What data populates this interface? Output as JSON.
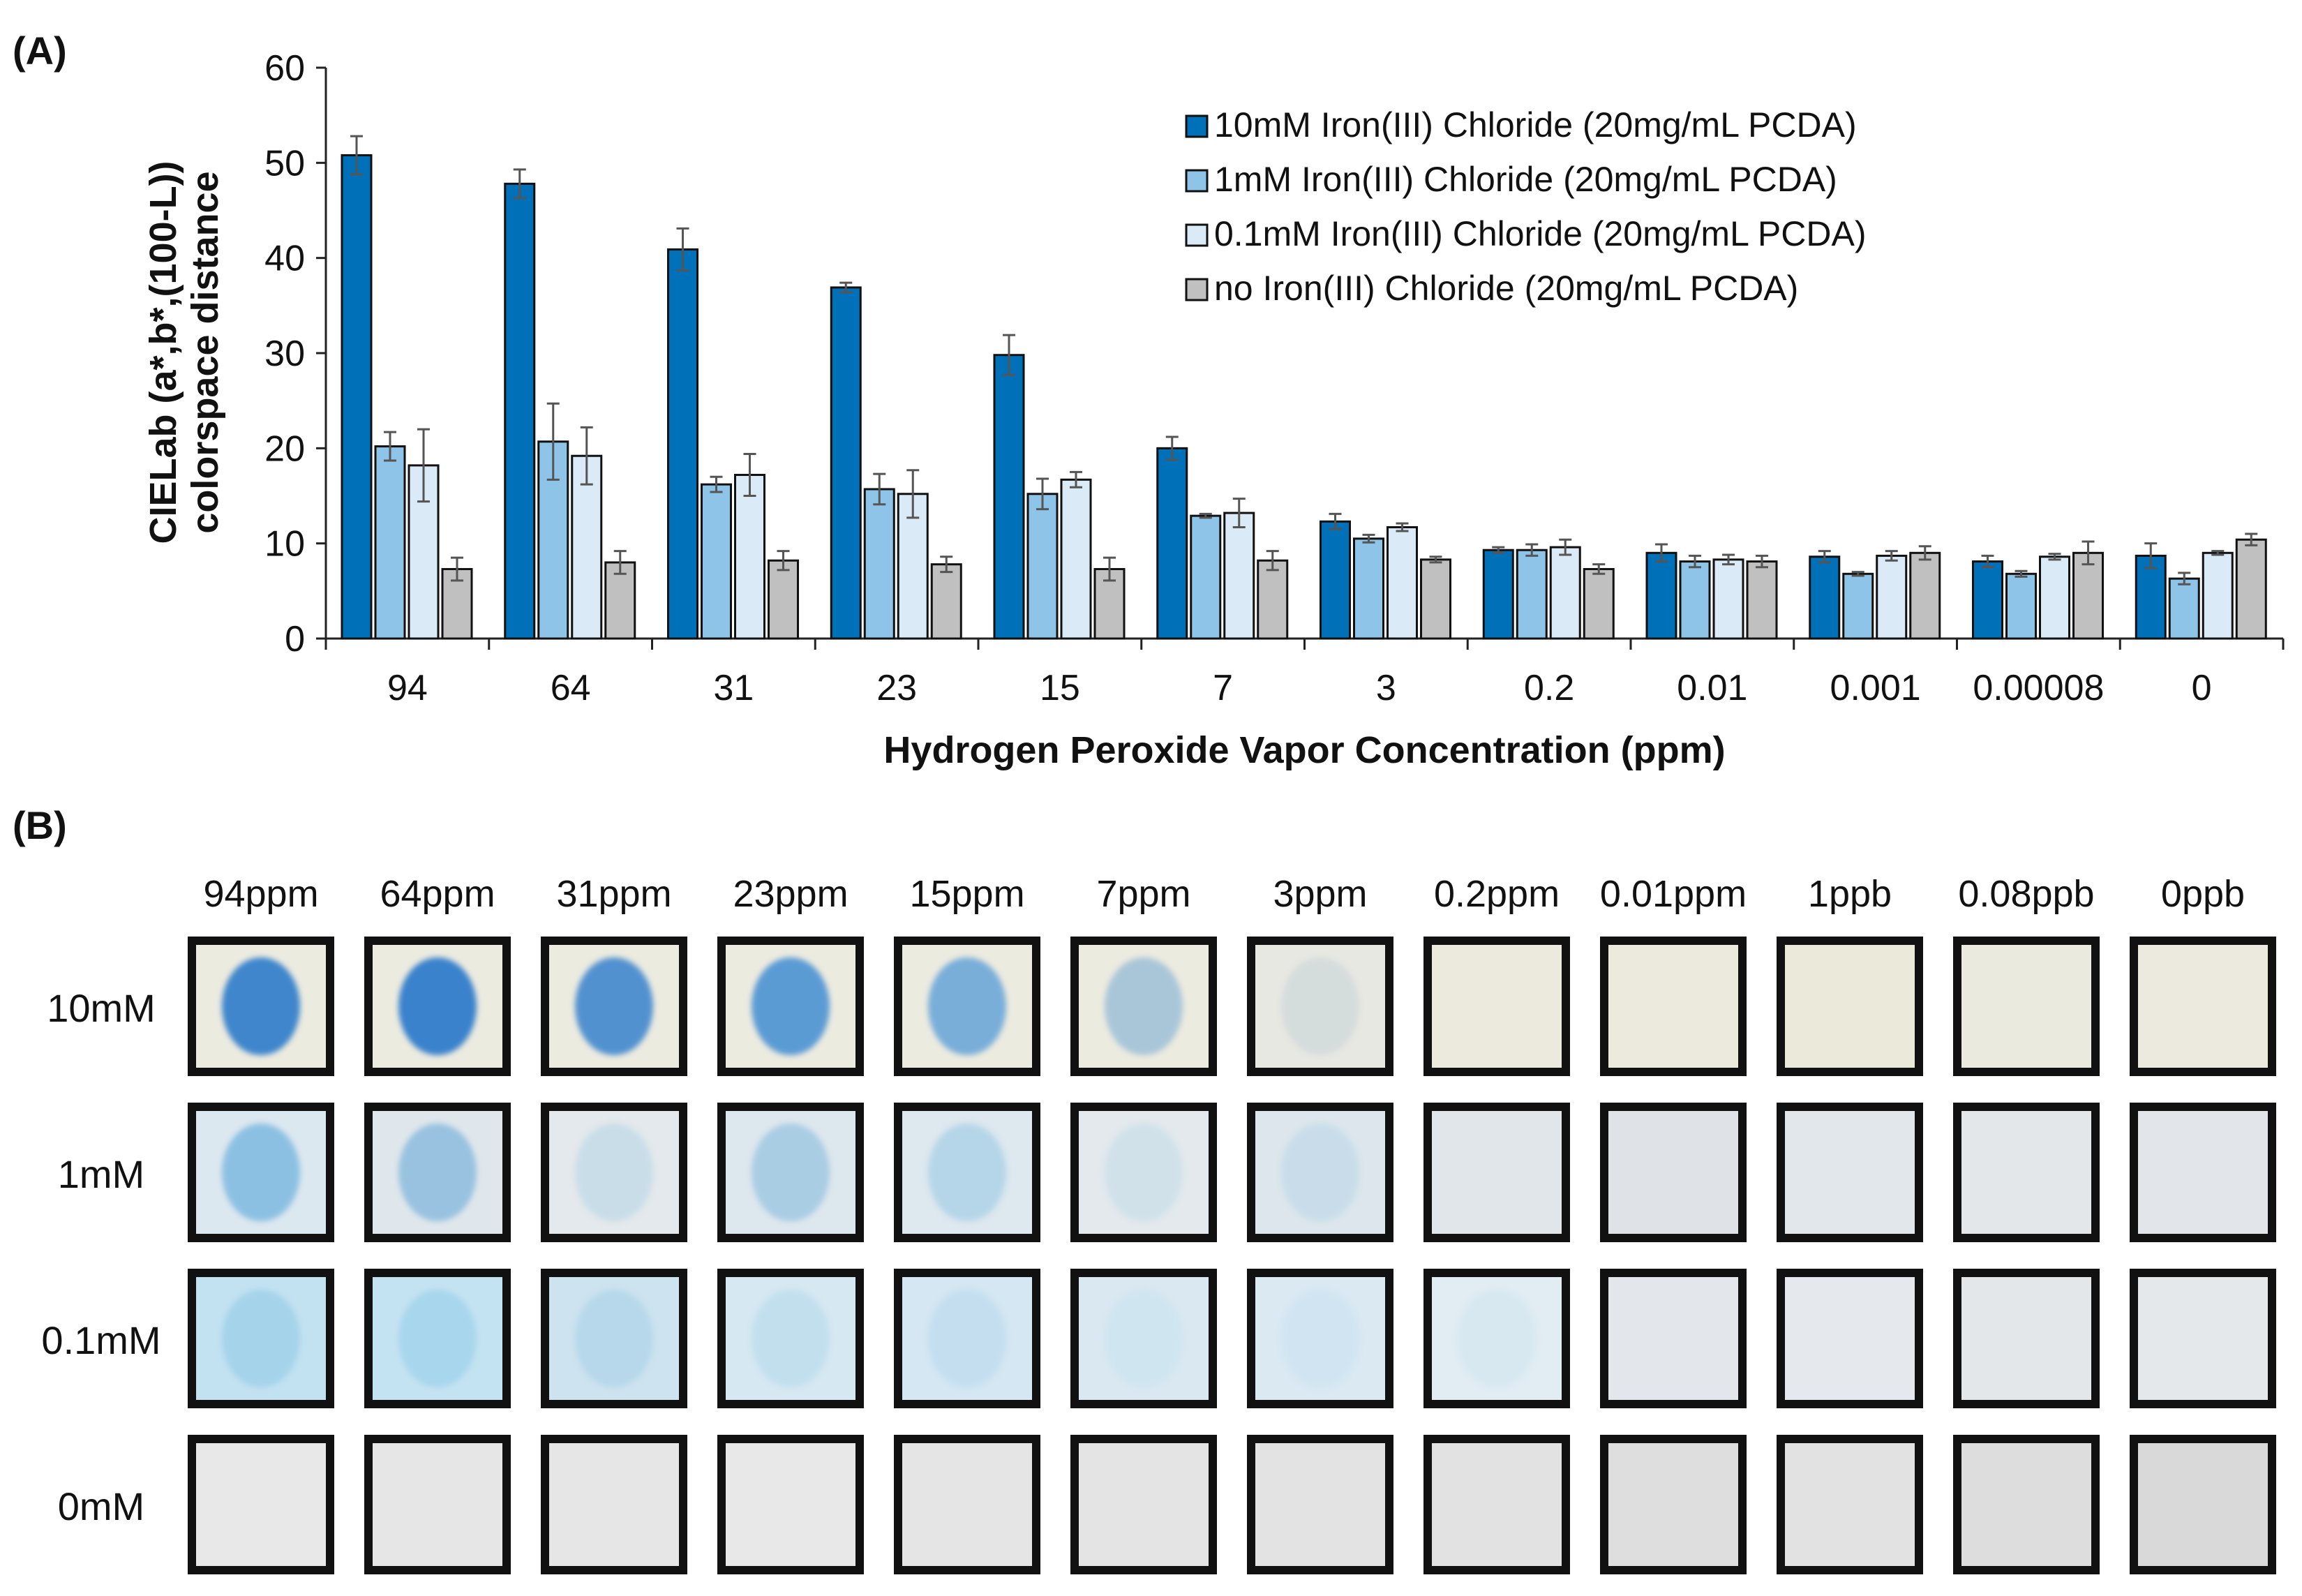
{
  "panels": {
    "a": "(A)",
    "b": "(B)"
  },
  "chart_data": {
    "type": "bar",
    "title": "",
    "xlabel": "Hydrogen Peroxide Vapor Concentration (ppm)",
    "ylabel": [
      "CIELab (a*,b*,(100-L))",
      "colorspace distance"
    ],
    "ylim": [
      0,
      60
    ],
    "yticks": [
      0,
      10,
      20,
      30,
      40,
      50,
      60
    ],
    "legend_position": "top-right",
    "categories": [
      "94",
      "64",
      "31",
      "23",
      "15",
      "7",
      "3",
      "0.2",
      "0.01",
      "0.001",
      "0.00008",
      "0"
    ],
    "series": [
      {
        "name": "10mM Iron(III) Chloride (20mg/mL PCDA)",
        "color": "#0070b8",
        "values": [
          50.8,
          47.8,
          40.9,
          36.9,
          29.8,
          20.0,
          12.3,
          9.3,
          9.0,
          8.6,
          8.1,
          8.7
        ],
        "errors": [
          2.0,
          1.5,
          2.2,
          0.5,
          2.1,
          1.2,
          0.8,
          0.3,
          0.9,
          0.6,
          0.6,
          1.3
        ]
      },
      {
        "name": "1mM Iron(III) Chloride (20mg/mL PCDA)",
        "color": "#8ec4e8",
        "values": [
          20.2,
          20.7,
          16.2,
          15.7,
          15.2,
          12.9,
          10.5,
          9.3,
          8.1,
          6.8,
          6.8,
          6.3
        ],
        "errors": [
          1.5,
          4.0,
          0.8,
          1.6,
          1.6,
          0.2,
          0.4,
          0.6,
          0.6,
          0.2,
          0.3,
          0.6
        ]
      },
      {
        "name": "0.1mM Iron(III) Chloride (20mg/mL PCDA)",
        "color": "#dbeaf7",
        "values": [
          18.2,
          19.2,
          17.2,
          15.2,
          16.7,
          13.2,
          11.7,
          9.6,
          8.3,
          8.7,
          8.6,
          9.0
        ],
        "errors": [
          3.8,
          3.0,
          2.2,
          2.5,
          0.8,
          1.5,
          0.4,
          0.8,
          0.5,
          0.5,
          0.3,
          0.2
        ]
      },
      {
        "name": "no Iron(III) Chloride (20mg/mL PCDA)",
        "color": "#c0c0c0",
        "values": [
          7.3,
          8.0,
          8.2,
          7.8,
          7.3,
          8.2,
          8.3,
          7.3,
          8.1,
          9.0,
          9.0,
          10.4
        ],
        "errors": [
          1.2,
          1.2,
          1.0,
          0.8,
          1.2,
          1.0,
          0.3,
          0.5,
          0.6,
          0.7,
          1.2,
          0.6
        ]
      }
    ]
  },
  "grid": {
    "columns": [
      "94ppm",
      "64ppm",
      "31ppm",
      "23ppm",
      "15ppm",
      "7ppm",
      "3ppm",
      "0.2ppm",
      "0.01ppm",
      "1ppb",
      "0.08ppb",
      "0ppb"
    ],
    "rows": [
      {
        "label": "10mM",
        "bg": "#ebeadf",
        "spots": [
          "#3f86cc",
          "#3a82cc",
          "#5291d0",
          "#5b9bd4",
          "#79aed9",
          "#a9c6d8",
          "#d5dcdc",
          null,
          null,
          null,
          null,
          null
        ]
      },
      {
        "label": "1mM",
        "bg": "#dfe6ea",
        "spots": [
          "#8cc0e2",
          "#98c2df",
          "#c9dde9",
          "#a9cde3",
          "#b5d6e8",
          "#d0e1ea",
          "#c8dde9",
          null,
          null,
          null,
          null,
          null
        ]
      },
      {
        "label": "0.1mM",
        "bg": "#c8e2ef",
        "spots": [
          "#a5d3ea",
          "#a8d6ec",
          "#b6d8ea",
          "#c2dfee",
          "#c4def0",
          "#cfe5f0",
          "#d0e5f1",
          "#d7e8f1",
          null,
          null,
          null,
          null
        ]
      },
      {
        "label": "0mM",
        "bg": "#e5e5e5",
        "spots": [
          null,
          null,
          null,
          null,
          null,
          null,
          null,
          null,
          null,
          null,
          null,
          null
        ]
      }
    ],
    "cell_bgs": [
      [
        "#ecebe0",
        "#ecebe0",
        "#ecebe0",
        "#ecebe0",
        "#ecebe0",
        "#ecebe0",
        "#e8e8e2",
        "#eceadc",
        "#eceadc",
        "#ebe9da",
        "#ebeade",
        "#eceadf"
      ],
      [
        "#dce8f0",
        "#dfe7ec",
        "#e3e9ec",
        "#dde7ee",
        "#dde8ef",
        "#e3e9ed",
        "#dce6ec",
        "#e1e6ea",
        "#dfe3e7",
        "#e2e7eb",
        "#e3e7ea",
        "#e2e6ea"
      ],
      [
        "#c2e2f1",
        "#c4e3f2",
        "#cde3ef",
        "#d6e8f2",
        "#d4e7f2",
        "#dae8f1",
        "#dae9f2",
        "#e1ecf3",
        "#e3e7ec",
        "#e5e9ed",
        "#e3e7ea",
        "#e5e8eb"
      ],
      [
        "#e8e8e8",
        "#e6e6e6",
        "#e6e6e6",
        "#e8e8e8",
        "#e5e5e5",
        "#e4e4e4",
        "#e3e3e3",
        "#e2e2e2",
        "#dedede",
        "#e2e2e2",
        "#dddddd",
        "#d9d9d9"
      ]
    ]
  }
}
